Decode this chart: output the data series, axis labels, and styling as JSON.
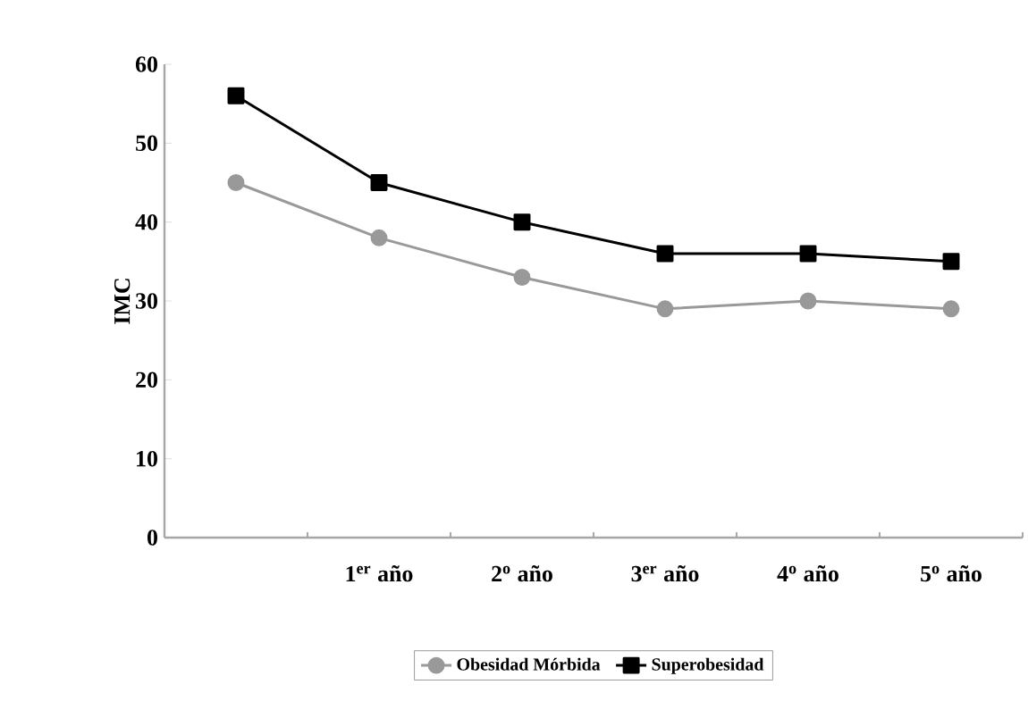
{
  "chart_data": {
    "type": "line",
    "ylabel": "IMC",
    "categories": [
      null,
      "1$^{er}$ año",
      "2$^{o}$ año",
      "3$^{er}$ año",
      "4$^{o}$ año",
      "5$^{o}$ año"
    ],
    "series": [
      {
        "name": "Obesidad Mórbida",
        "color": "#999999",
        "marker": "circle",
        "values": [
          45,
          38,
          33,
          29,
          30,
          29
        ]
      },
      {
        "name": "Superobesidad",
        "color": "#000000",
        "marker": "square",
        "values": [
          56,
          45,
          40,
          36,
          36,
          35
        ]
      }
    ],
    "ylim": [
      0,
      60
    ],
    "yticks": [
      0,
      10,
      20,
      30,
      40,
      50,
      60
    ],
    "grid": false,
    "legend": "bottom",
    "line_style": "solid"
  }
}
